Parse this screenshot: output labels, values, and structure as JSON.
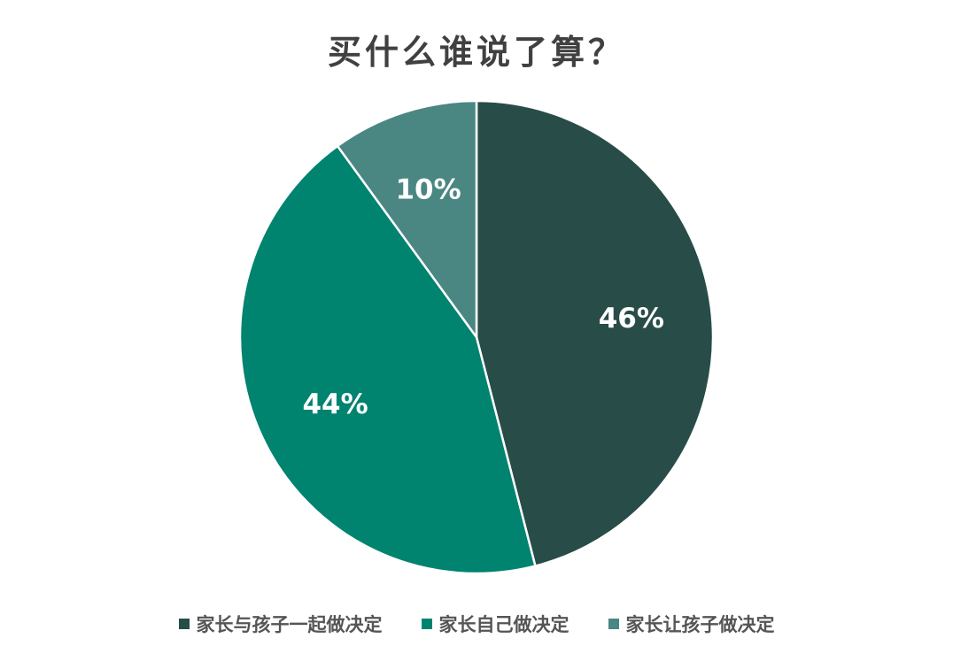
{
  "chart_data": {
    "type": "pie",
    "title": "买什么谁说了算？",
    "categories": [
      "家长与孩子一起做决定",
      "家长自己做决定",
      "家长让孩子做决定"
    ],
    "values": [
      46,
      44,
      10
    ],
    "labels": [
      "46%",
      "44%",
      "10%"
    ],
    "colors": [
      "#284c47",
      "#00836f",
      "#4a8682"
    ],
    "legend_position": "bottom"
  }
}
